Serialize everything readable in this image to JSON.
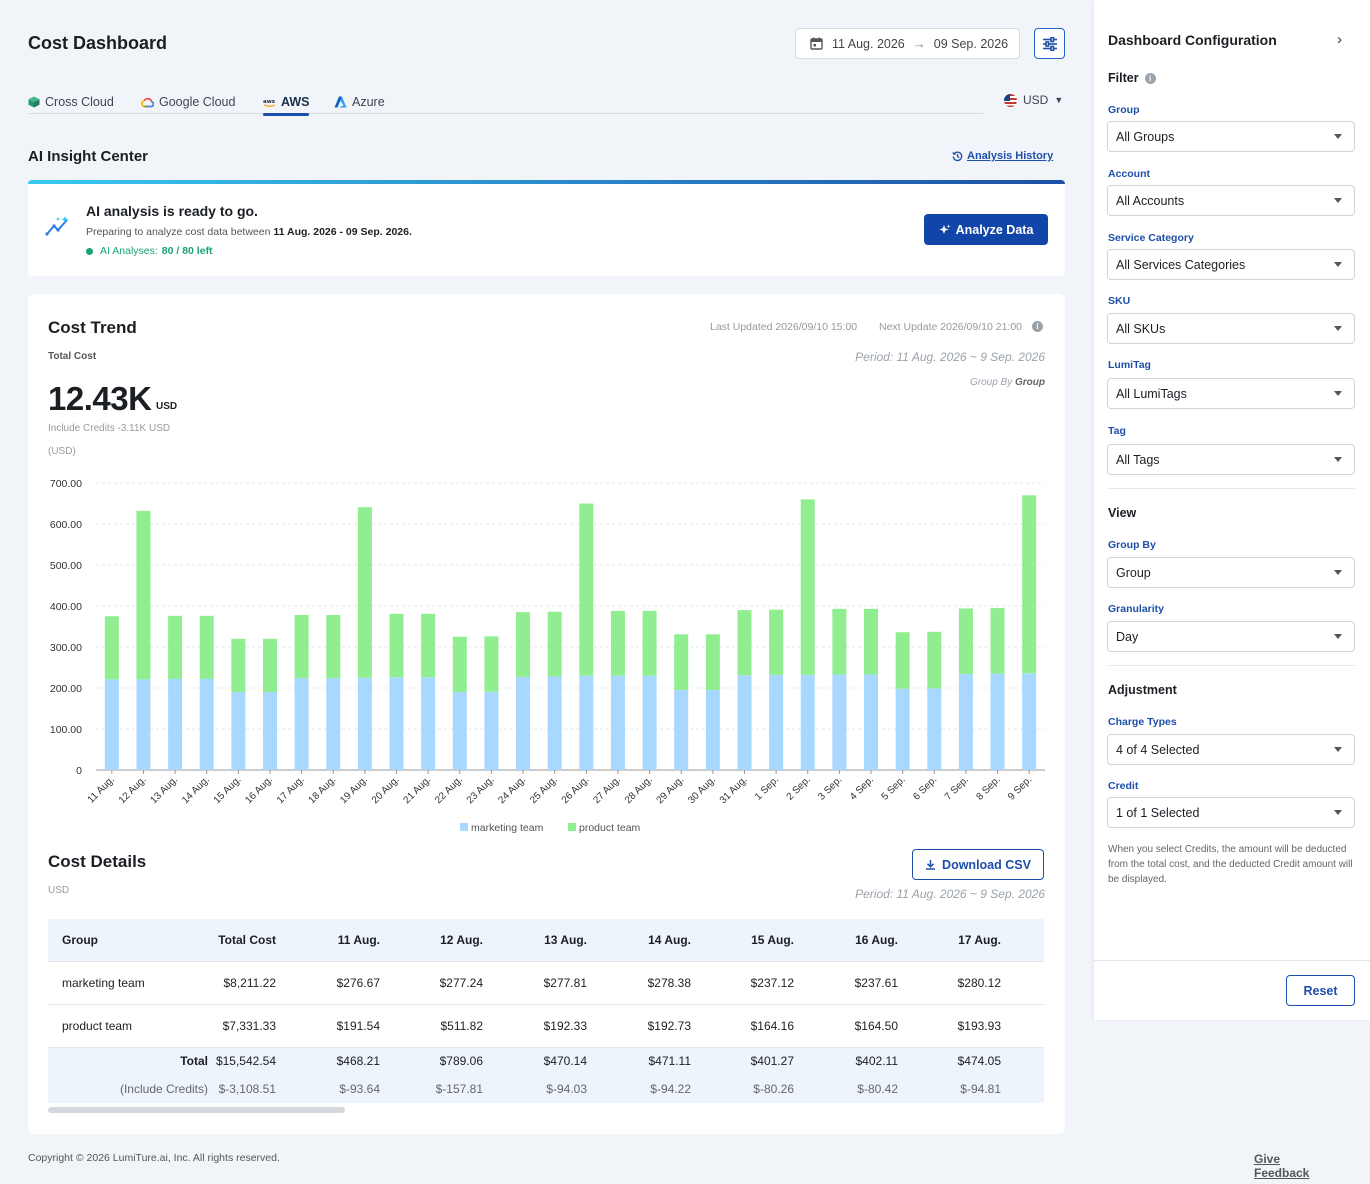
{
  "header": {
    "title": "Cost Dashboard",
    "date_start": "11 Aug. 2026",
    "date_end": "09 Sep. 2026",
    "arrow": "→"
  },
  "tabs": [
    {
      "label": "Cross Cloud",
      "icon": "cube-icon"
    },
    {
      "label": "Google Cloud",
      "icon": "google-cloud-icon"
    },
    {
      "label": "AWS",
      "icon": "aws-icon",
      "active": true
    },
    {
      "label": "Azure",
      "icon": "azure-icon"
    }
  ],
  "currency": "USD",
  "ai": {
    "section_title": "AI Insight Center",
    "history_link": "Analysis History",
    "headline": "AI analysis is ready to go.",
    "desc_prefix": "Preparing to analyze cost data between",
    "desc_range": "11 Aug. 2026 - 09 Sep. 2026.",
    "quota_label": "AI Analyses:",
    "quota_value": "80 / 80 left",
    "button": "Analyze Data",
    "accent": "#1245a8"
  },
  "trend": {
    "title": "Cost Trend",
    "last_updated": "Last Updated 2026/09/10 15:00",
    "next_update": "Next Update 2026/09/10 21:00",
    "total_label": "Total Cost",
    "period": "Period: 11 Aug. 2026 ~ 9 Sep. 2026",
    "group_by_label": "Group By",
    "group_by_value": "Group",
    "total_value": "12.43K",
    "total_unit": "USD",
    "credits_note": "Include Credits -3.11K USD",
    "unit_label": "(USD)"
  },
  "chart_data": {
    "type": "bar",
    "stacked": true,
    "categories": [
      "11 Aug.",
      "12 Aug.",
      "13 Aug.",
      "14 Aug.",
      "15 Aug.",
      "16 Aug.",
      "17 Aug.",
      "18 Aug.",
      "19 Aug.",
      "20 Aug.",
      "21 Aug.",
      "22 Aug.",
      "23 Aug.",
      "24 Aug.",
      "25 Aug.",
      "26 Aug.",
      "27 Aug.",
      "28 Aug.",
      "29 Aug.",
      "30 Aug.",
      "31 Aug.",
      "1 Sep.",
      "2 Sep.",
      "3 Sep.",
      "4 Sep.",
      "5 Sep.",
      "6 Sep.",
      "7 Sep.",
      "8 Sep.",
      "9 Sep."
    ],
    "series": [
      {
        "name": "marketing team",
        "color": "#a8d8ff",
        "values": [
          221,
          221,
          222,
          222,
          190,
          190,
          224,
          224,
          225,
          226,
          226,
          190,
          191,
          227,
          228,
          230,
          230,
          230,
          195,
          195,
          231,
          232,
          232,
          233,
          233,
          198,
          199,
          234,
          235,
          236
        ]
      },
      {
        "name": "product team",
        "color": "#90ee90",
        "values": [
          154,
          411,
          154,
          154,
          130,
          130,
          154,
          154,
          416,
          155,
          155,
          135,
          135,
          158,
          158,
          420,
          158,
          158,
          136,
          136,
          159,
          159,
          428,
          160,
          160,
          138,
          138,
          160,
          160,
          434
        ]
      }
    ],
    "yticks": [
      "700.00",
      "600.00",
      "500.00",
      "400.00",
      "300.00",
      "200.00",
      "100.00",
      "0"
    ],
    "ylim": [
      0,
      700
    ],
    "grid": true,
    "legend_position": "bottom"
  },
  "details": {
    "title": "Cost Details",
    "unit": "USD",
    "csv_button": "Download CSV",
    "period": "Period: 11 Aug. 2026 ~ 9 Sep. 2026",
    "columns": [
      "Group",
      "Total Cost",
      "11 Aug.",
      "12 Aug.",
      "13 Aug.",
      "14 Aug.",
      "15 Aug.",
      "16 Aug.",
      "17 Aug."
    ],
    "rows": [
      [
        "marketing team",
        "$8,211.22",
        "$276.67",
        "$277.24",
        "$277.81",
        "$278.38",
        "$237.12",
        "$237.61",
        "$280.12"
      ],
      [
        "product team",
        "$7,331.33",
        "$191.54",
        "$511.82",
        "$192.33",
        "$192.73",
        "$164.16",
        "$164.50",
        "$193.93"
      ]
    ],
    "total_row": [
      "Total",
      "$15,542.54",
      "$468.21",
      "$789.06",
      "$470.14",
      "$471.11",
      "$401.27",
      "$402.11",
      "$474.05"
    ],
    "credit_row": [
      "(Include Credits)",
      "$-3,108.51",
      "$-93.64",
      "$-157.81",
      "$-94.03",
      "$-94.22",
      "$-80.26",
      "$-80.42",
      "$-94.81"
    ]
  },
  "footer": {
    "copyright": "Copyright © 2026 LumiTure.ai, Inc. All rights reserved.",
    "feedback": "Give Feedback"
  },
  "config": {
    "title": "Dashboard Configuration",
    "filter_label": "Filter",
    "filters": [
      {
        "label": "Group",
        "value": "All Groups"
      },
      {
        "label": "Account",
        "value": "All Accounts"
      },
      {
        "label": "Service Category",
        "value": "All Services Categories"
      },
      {
        "label": "SKU",
        "value": "All SKUs"
      },
      {
        "label": "LumiTag",
        "value": "All LumiTags"
      },
      {
        "label": "Tag",
        "value": "All Tags"
      }
    ],
    "view_label": "View",
    "view": [
      {
        "label": "Group By",
        "value": "Group"
      },
      {
        "label": "Granularity",
        "value": "Day"
      }
    ],
    "adjustment_label": "Adjustment",
    "adjustment": [
      {
        "label": "Charge Types",
        "value": "4 of 4 Selected"
      },
      {
        "label": "Credit",
        "value": "1 of 1 Selected"
      }
    ],
    "note": "When you select Credits, the amount will be deducted from the total cost, and the deducted Credit amount will be displayed.",
    "reset": "Reset"
  }
}
